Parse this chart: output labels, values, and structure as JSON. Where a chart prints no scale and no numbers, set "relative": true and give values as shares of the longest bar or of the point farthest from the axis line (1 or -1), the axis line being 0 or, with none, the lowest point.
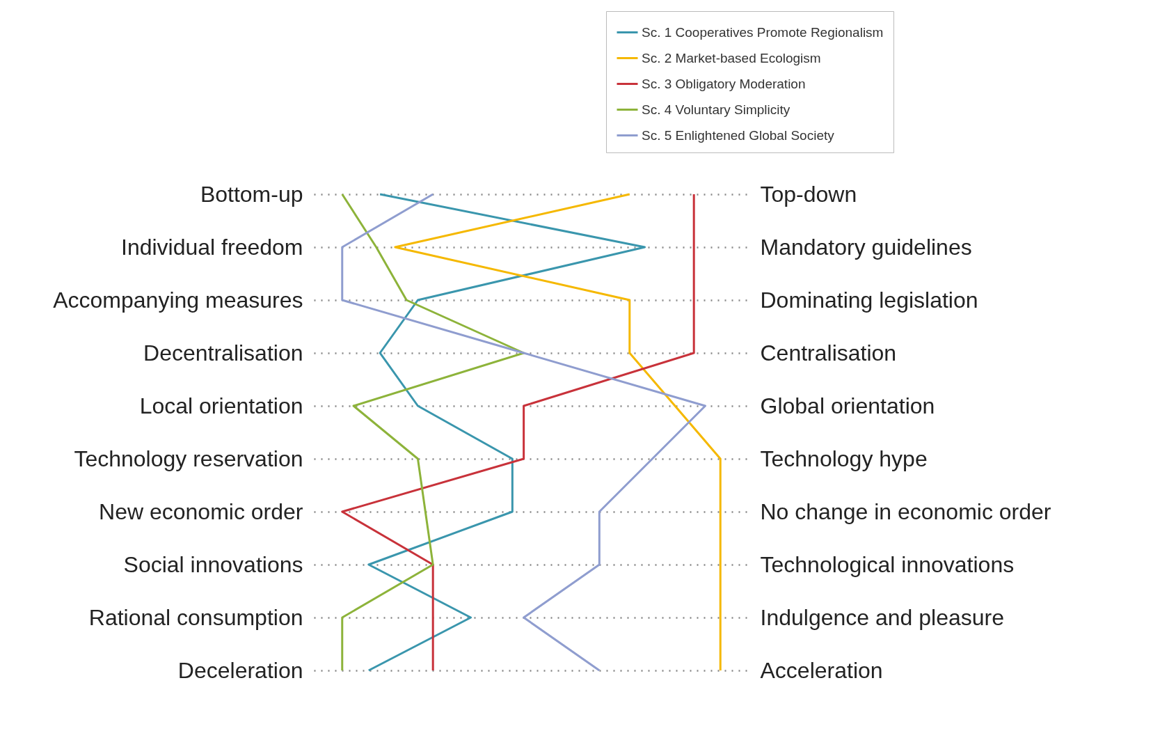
{
  "chart_data": {
    "type": "line",
    "orientation": "horizontal",
    "relative": true,
    "grid": "y",
    "legend": "top right",
    "categories": [
      "Bottom-up",
      "Individual freedom",
      "Accompanying measures",
      "Decentralisation",
      "Local orientation",
      "Technology reservation",
      "New economic order",
      "Social innovations",
      "Rational consumption",
      "Deceleration"
    ],
    "y2_categories": [
      "Top-down",
      "Mandatory guidelines",
      "Dominating legislation",
      "Centralisation",
      "Global orientation",
      "Technology hype",
      "No change in economic order",
      "Technological innovations",
      "Indulgence and pleasure",
      "Acceleration"
    ],
    "series": [
      {
        "name": "Sc. 1 Cooperatives Promote Regionalism",
        "color": "#3a96ad",
        "values": [
          0.1,
          0.8,
          0.2,
          0.1,
          0.2,
          0.45,
          0.45,
          0.07,
          0.34,
          0.07
        ]
      },
      {
        "name": "Sc. 2 Market-based Ecologism",
        "color": "#f5b800",
        "values": [
          0.76,
          0.14,
          0.76,
          0.76,
          0.88,
          1,
          1,
          1,
          1,
          1
        ]
      },
      {
        "name": "Sc. 3 Obligatory Moderation",
        "color": "#c8323a",
        "values": [
          0.93,
          0.93,
          0.93,
          0.93,
          0.48,
          0.48,
          0,
          0.24,
          0.24,
          0.24
        ]
      },
      {
        "name": "Sc. 4 Voluntary Simplicity",
        "color": "#8db33a",
        "values": [
          0,
          0.09,
          0.17,
          0.48,
          0.03,
          0.2,
          0.22,
          0.24,
          0,
          0
        ]
      },
      {
        "name": "Sc. 5 Enlightened Global Society",
        "color": "#8f9dcf",
        "values": [
          0.24,
          0,
          0,
          0.48,
          0.96,
          0.82,
          0.68,
          0.68,
          0.48,
          0.68
        ]
      }
    ]
  }
}
